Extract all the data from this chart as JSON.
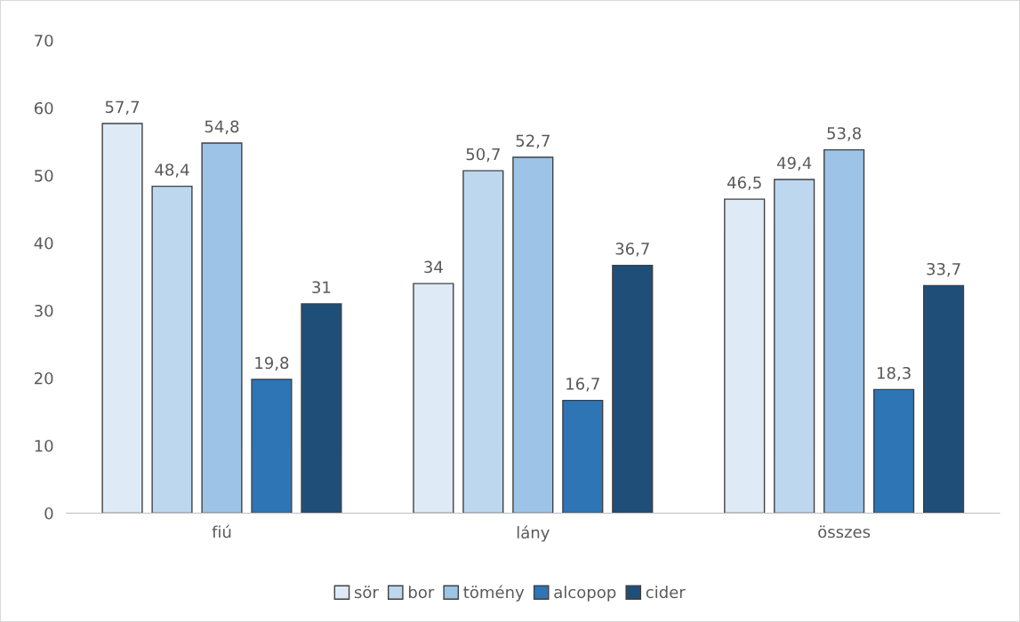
{
  "chart_data": {
    "type": "bar",
    "categories": [
      "fiú",
      "lány",
      "összes"
    ],
    "series": [
      {
        "name": "sör",
        "color": "#deebf7",
        "values": [
          57.7,
          34,
          46.5
        ],
        "value_labels": [
          "57,7",
          "34",
          "46,5"
        ]
      },
      {
        "name": "bor",
        "color": "#bdd7ee",
        "values": [
          48.4,
          50.7,
          49.4
        ],
        "value_labels": [
          "48,4",
          "50,7",
          "49,4"
        ]
      },
      {
        "name": "tömény",
        "color": "#9dc3e6",
        "values": [
          54.8,
          52.7,
          53.8
        ],
        "value_labels": [
          "54,8",
          "52,7",
          "53,8"
        ]
      },
      {
        "name": "alcopop",
        "color": "#2e75b6",
        "values": [
          19.8,
          16.7,
          18.3
        ],
        "value_labels": [
          "19,8",
          "16,7",
          "18,3"
        ]
      },
      {
        "name": "cider",
        "color": "#1f4e79",
        "values": [
          31,
          36.7,
          33.7
        ],
        "value_labels": [
          "31",
          "36,7",
          "33,7"
        ]
      }
    ],
    "ylim": [
      0,
      70
    ],
    "yticks": [
      0,
      10,
      20,
      30,
      40,
      50,
      60,
      70
    ],
    "grid": false,
    "legend": "bottom"
  }
}
